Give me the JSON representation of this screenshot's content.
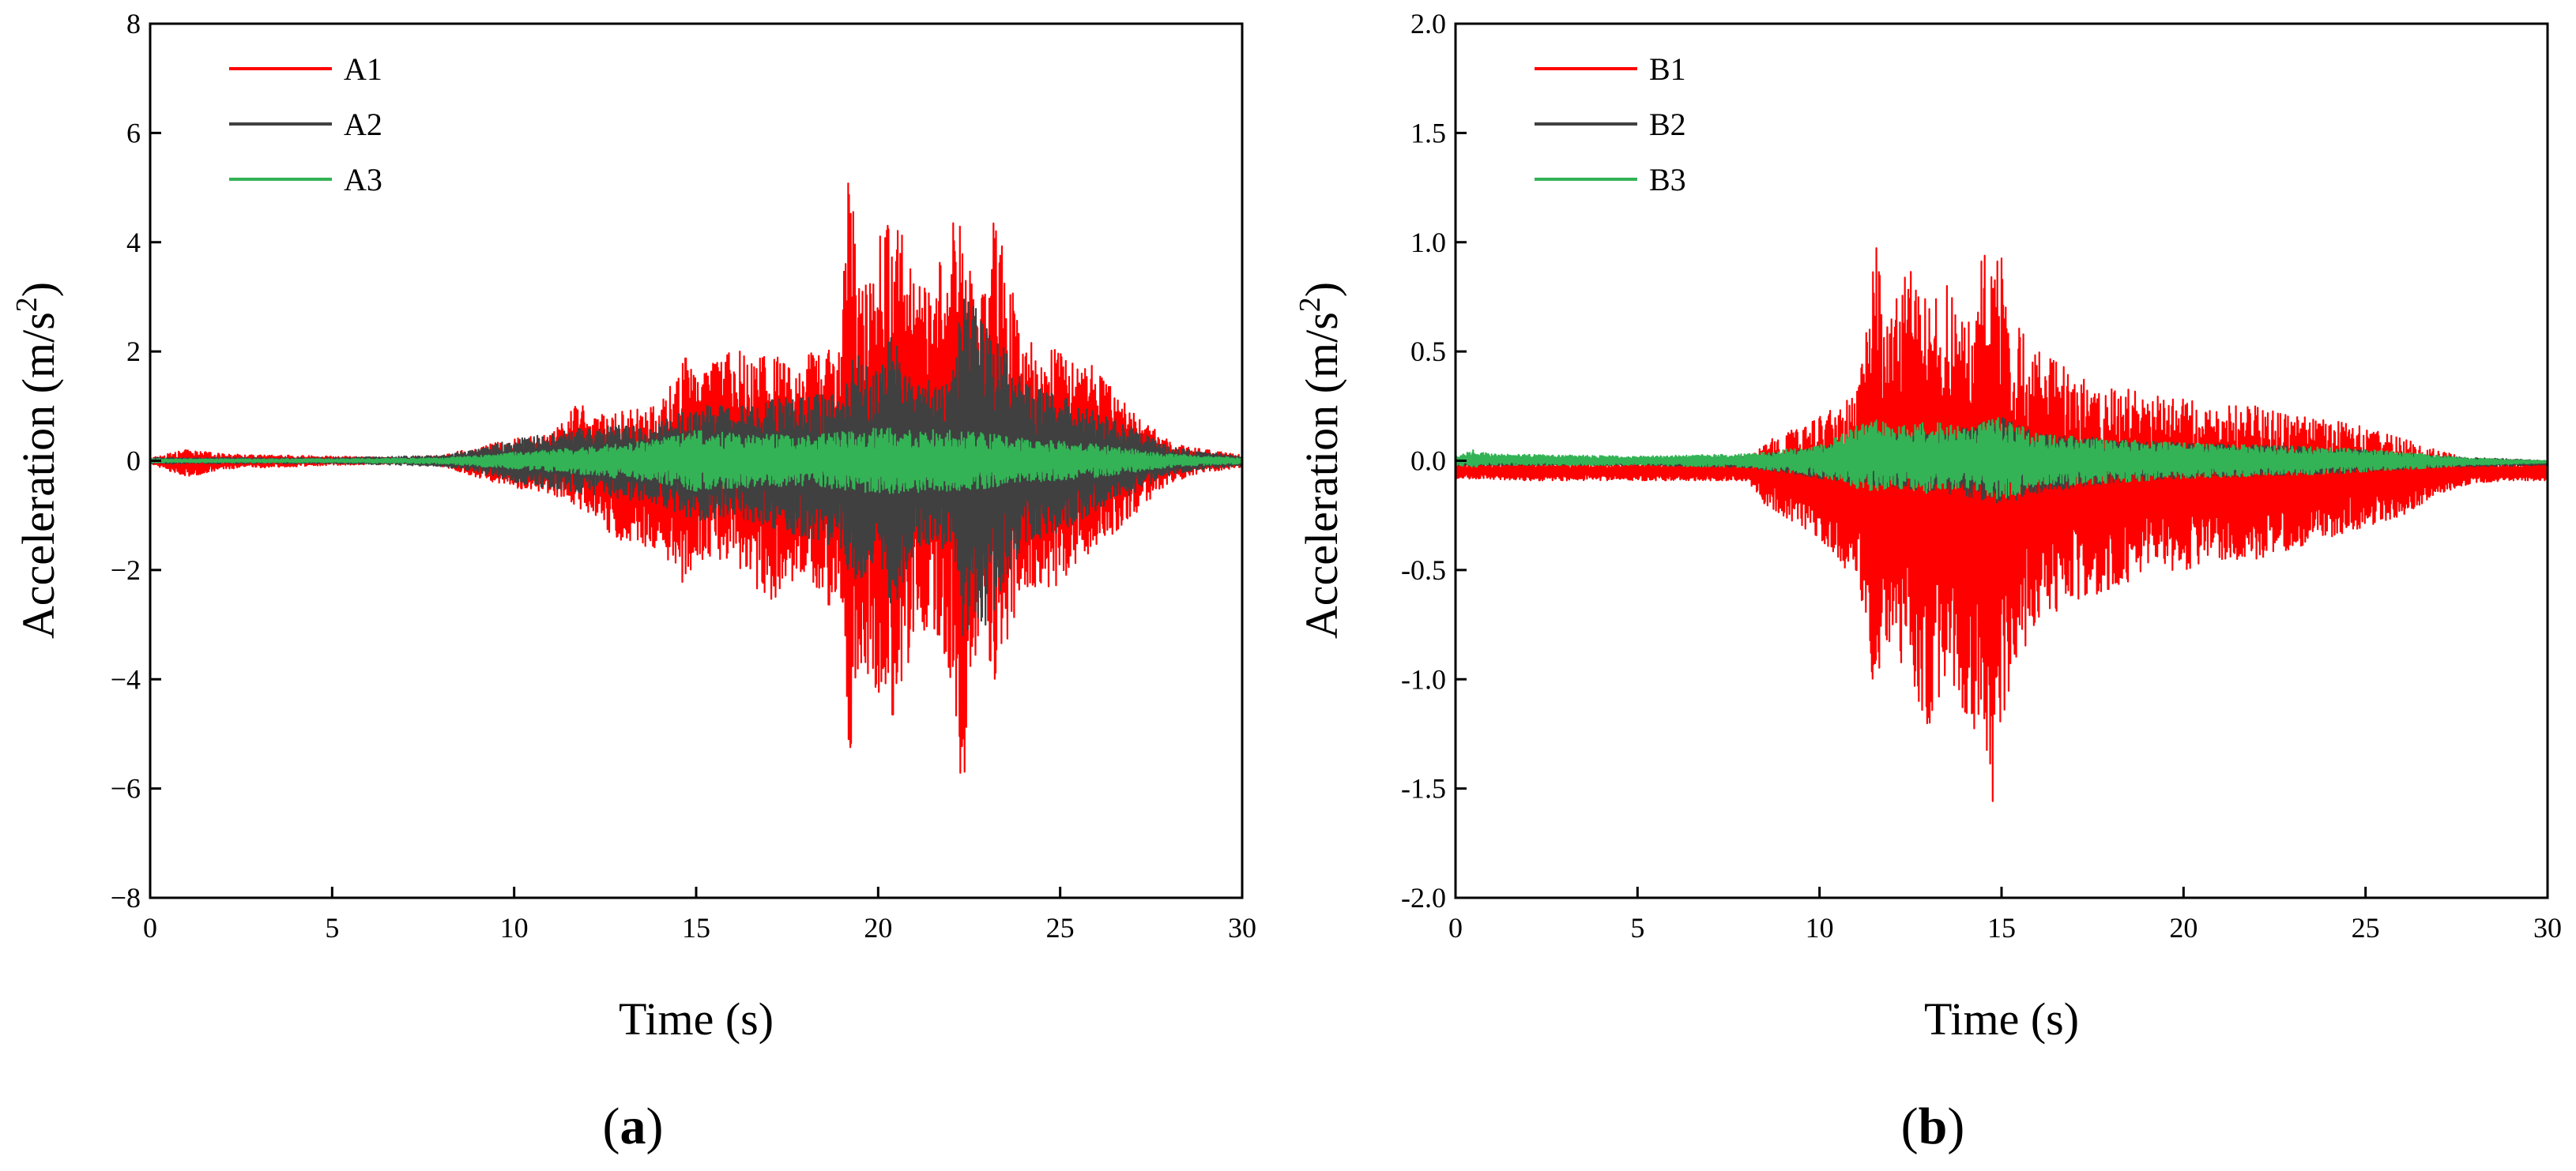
{
  "colors": {
    "series1": "#ff0000",
    "series2": "#404040",
    "series3": "#33b355"
  },
  "chart_data": [
    {
      "type": "line",
      "panel_label": "a",
      "xlabel": "Time (s)",
      "ylabel_main": "Acceleration (m/s",
      "ylabel_sup": "2",
      "ylabel_close": ")",
      "xlim": [
        0,
        30
      ],
      "ylim": [
        -8,
        8
      ],
      "xticks": [
        0,
        5,
        10,
        15,
        20,
        25,
        30
      ],
      "yticks": [
        -8,
        -6,
        -4,
        -2,
        0,
        2,
        4,
        6,
        8
      ],
      "ytick_labels": [
        "−8",
        "−6",
        "−4",
        "−2",
        "0",
        "2",
        "4",
        "6",
        "8"
      ],
      "legend_position": "top-left",
      "grid": false,
      "series": [
        {
          "name": "A1",
          "color": "#ff0000",
          "envelope": {
            "t": [
              0,
              1,
              2,
              5,
              7,
              8,
              9,
              10,
              11,
              11.9,
              12,
              13,
              14,
              14.8,
              15,
              16,
              17,
              18,
              19,
              19.2,
              19.5,
              20,
              20.4,
              21,
              21.5,
              22,
              22.3,
              22.6,
              23,
              23.2,
              24,
              25,
              26,
              27,
              28,
              29,
              30
            ],
            "upper": [
              0.05,
              0.2,
              0.12,
              0.08,
              0.05,
              0.1,
              0.25,
              0.4,
              0.5,
              1.15,
              0.8,
              0.9,
              1.0,
              2.0,
              1.7,
              2.0,
              2.0,
              1.9,
              2.6,
              5.4,
              3.2,
              4.0,
              4.8,
              3.2,
              3.5,
              4.0,
              5.7,
              3.0,
              3.5,
              4.5,
              2.2,
              2.0,
              1.7,
              0.9,
              0.35,
              0.2,
              0.1
            ],
            "lower": [
              -0.05,
              -0.3,
              -0.15,
              -0.08,
              -0.05,
              -0.1,
              -0.3,
              -0.5,
              -0.6,
              -0.9,
              -1.0,
              -1.5,
              -1.6,
              -2.4,
              -1.8,
              -1.8,
              -2.6,
              -2.0,
              -3.0,
              -5.5,
              -3.8,
              -4.2,
              -4.9,
              -3.2,
              -3.0,
              -4.0,
              -6.4,
              -3.5,
              -3.8,
              -4.0,
              -2.3,
              -2.3,
              -1.6,
              -1.0,
              -0.4,
              -0.2,
              -0.12
            ]
          }
        },
        {
          "name": "A2",
          "color": "#404040",
          "envelope": {
            "t": [
              0,
              5,
              8,
              9,
              10,
              12,
              14,
              15,
              16,
              18,
              19,
              19.3,
              20,
              20.4,
              21,
              22,
              22.3,
              23,
              24,
              25,
              26,
              27,
              28,
              29,
              30
            ],
            "upper": [
              0.05,
              0.05,
              0.1,
              0.2,
              0.4,
              0.6,
              0.7,
              1.0,
              1.0,
              1.2,
              1.2,
              2.0,
              1.6,
              2.4,
              1.5,
              1.4,
              3.0,
              2.6,
              1.4,
              1.2,
              0.9,
              0.6,
              0.25,
              0.15,
              0.1
            ],
            "lower": [
              -0.05,
              -0.05,
              -0.1,
              -0.2,
              -0.4,
              -0.6,
              -0.8,
              -1.1,
              -1.0,
              -1.4,
              -1.6,
              -2.3,
              -1.8,
              -2.8,
              -1.6,
              -1.6,
              -3.2,
              -3.0,
              -1.5,
              -1.3,
              -0.9,
              -0.6,
              -0.25,
              -0.15,
              -0.1
            ]
          }
        },
        {
          "name": "A3",
          "color": "#33b355",
          "envelope": {
            "t": [
              0,
              5,
              8,
              10,
              12,
              14,
              15,
              16,
              18,
              20,
              22,
              23,
              24,
              26,
              28,
              30
            ],
            "upper": [
              0.03,
              0.03,
              0.05,
              0.15,
              0.25,
              0.4,
              0.55,
              0.5,
              0.45,
              0.6,
              0.55,
              0.5,
              0.4,
              0.3,
              0.12,
              0.05
            ],
            "lower": [
              -0.03,
              -0.03,
              -0.05,
              -0.15,
              -0.25,
              -0.4,
              -0.55,
              -0.5,
              -0.45,
              -0.6,
              -0.55,
              -0.5,
              -0.4,
              -0.3,
              -0.12,
              -0.05
            ]
          }
        }
      ]
    },
    {
      "type": "line",
      "panel_label": "b",
      "xlabel": "Time (s)",
      "ylabel_main": "Acceleration (m/s",
      "ylabel_sup": "2",
      "ylabel_close": ")",
      "xlim": [
        0,
        30
      ],
      "ylim": [
        -2.0,
        2.0
      ],
      "xticks": [
        0,
        5,
        10,
        15,
        20,
        25,
        30
      ],
      "yticks": [
        -2.0,
        -1.5,
        -1.0,
        -0.5,
        0.0,
        0.5,
        1.0,
        1.5,
        2.0
      ],
      "ytick_labels": [
        "-2.0",
        "-1.5",
        "-1.0",
        "-0.5",
        "0.0",
        "0.5",
        "1.0",
        "1.5",
        "2.0"
      ],
      "legend_position": "top-left",
      "grid": false,
      "series": [
        {
          "name": "B1",
          "color": "#ff0000",
          "envelope": {
            "t": [
              0,
              2,
              5,
              8,
              8.3,
              8.5,
              9,
              10,
              11,
              11.3,
              11.5,
              11.7,
              12,
              12.5,
              13,
              13.5,
              14,
              14.5,
              14.8,
              15,
              15.2,
              15.5,
              16,
              17,
              18,
              19,
              20,
              21,
              22,
              23,
              24,
              25,
              26,
              27,
              28,
              29,
              30
            ],
            "upper": [
              -0.01,
              -0.01,
              -0.01,
              -0.01,
              0.05,
              0.1,
              0.12,
              0.2,
              0.3,
              0.6,
              1.05,
              0.8,
              0.7,
              0.9,
              0.7,
              0.8,
              0.6,
              0.95,
              0.9,
              0.95,
              0.7,
              0.6,
              0.5,
              0.4,
              0.35,
              0.3,
              0.28,
              0.25,
              0.25,
              0.2,
              0.2,
              0.15,
              0.1,
              0.05,
              0.0,
              -0.01,
              -0.01
            ],
            "lower": [
              -0.08,
              -0.09,
              -0.09,
              -0.09,
              -0.15,
              -0.2,
              -0.25,
              -0.35,
              -0.55,
              -0.75,
              -1.07,
              -0.9,
              -0.85,
              -1.0,
              -1.22,
              -1.0,
              -1.15,
              -1.3,
              -1.6,
              -1.2,
              -1.05,
              -0.9,
              -0.75,
              -0.65,
              -0.6,
              -0.5,
              -0.5,
              -0.45,
              -0.45,
              -0.4,
              -0.35,
              -0.3,
              -0.25,
              -0.15,
              -0.1,
              -0.09,
              -0.09
            ]
          }
        },
        {
          "name": "B2",
          "color": "#404040",
          "envelope": {
            "t": [
              0,
              5,
              8,
              10,
              12,
              14,
              15,
              16,
              18,
              20,
              24,
              27,
              30
            ],
            "upper": [
              0.01,
              0.01,
              0.02,
              0.06,
              0.12,
              0.15,
              0.2,
              0.12,
              0.1,
              0.08,
              0.06,
              0.02,
              0.0
            ],
            "lower": [
              -0.02,
              -0.02,
              -0.03,
              -0.08,
              -0.12,
              -0.16,
              -0.2,
              -0.15,
              -0.1,
              -0.08,
              -0.06,
              -0.03,
              -0.02
            ]
          }
        },
        {
          "name": "B3",
          "color": "#33b355",
          "envelope": {
            "t": [
              0,
              0.5,
              1,
              5,
              8,
              10,
              11.5,
              12,
              13,
              14,
              15,
              16,
              18,
              20,
              22,
              24,
              26,
              28,
              30
            ],
            "upper": [
              0.02,
              0.05,
              0.03,
              0.02,
              0.03,
              0.07,
              0.2,
              0.15,
              0.18,
              0.15,
              0.2,
              0.12,
              0.1,
              0.08,
              0.07,
              0.06,
              0.04,
              0.01,
              0.0
            ],
            "lower": [
              -0.02,
              -0.03,
              -0.02,
              -0.02,
              -0.03,
              -0.07,
              -0.15,
              -0.12,
              -0.15,
              -0.12,
              -0.18,
              -0.12,
              -0.1,
              -0.08,
              -0.07,
              -0.06,
              -0.04,
              -0.02,
              -0.01
            ]
          }
        }
      ]
    }
  ]
}
